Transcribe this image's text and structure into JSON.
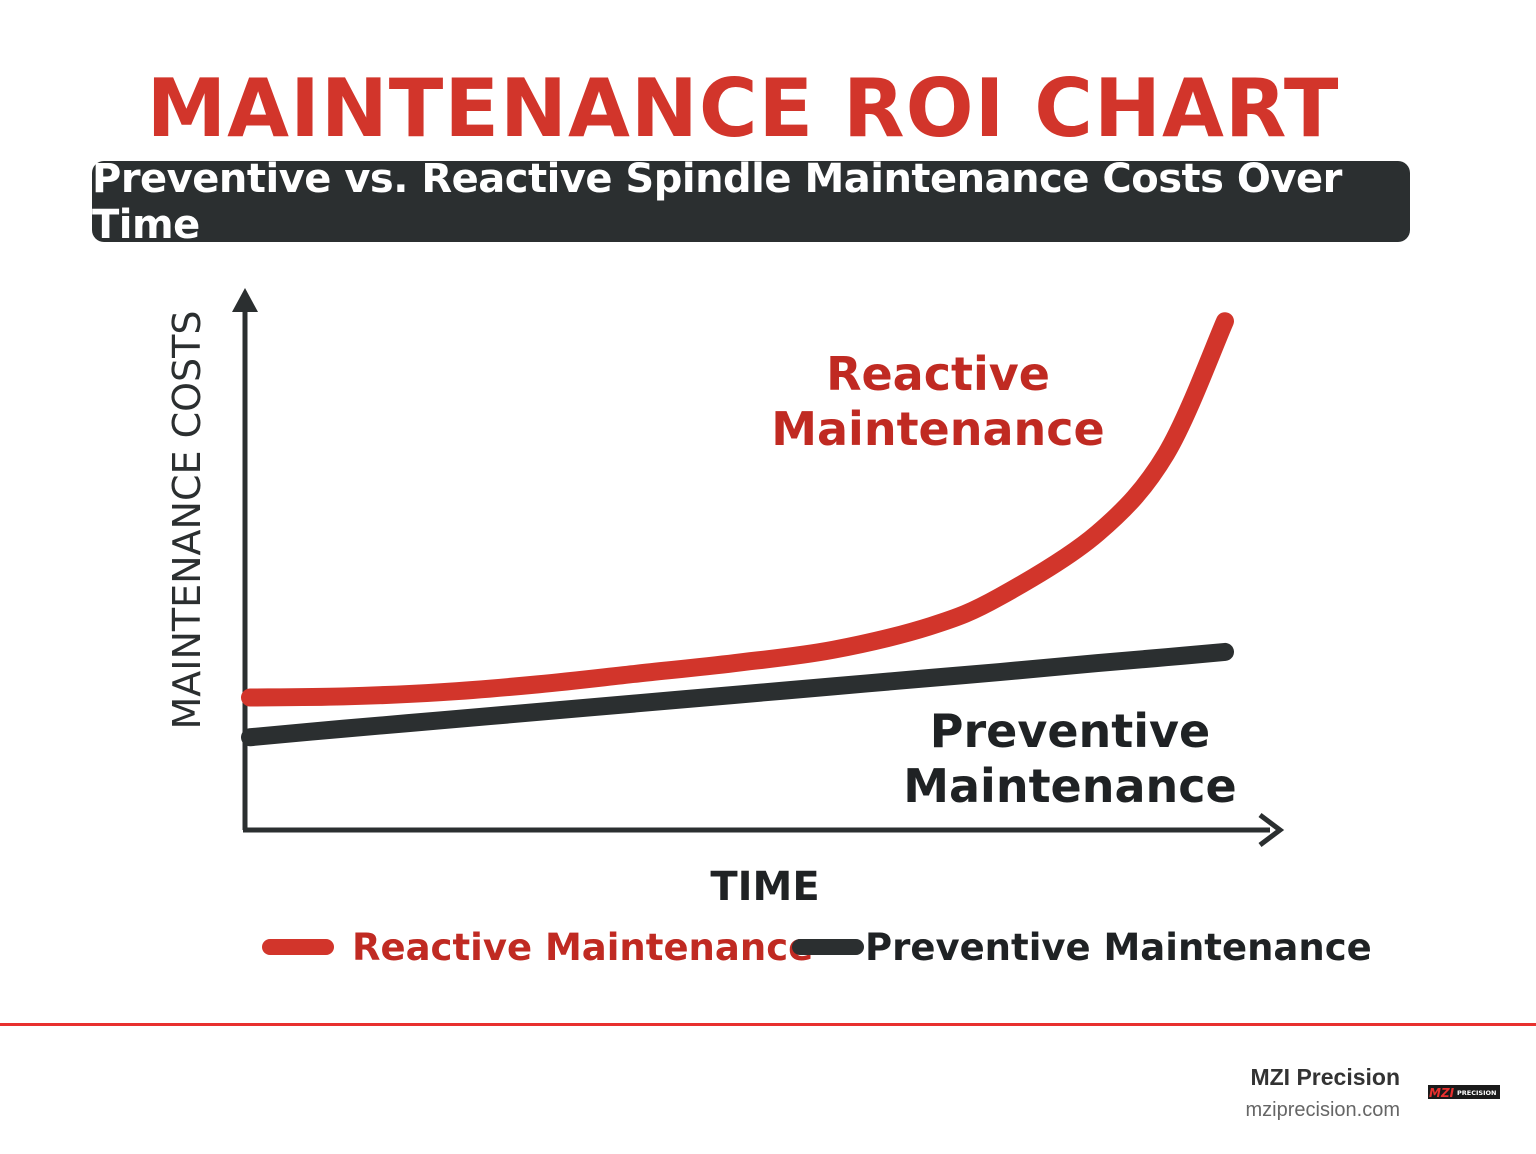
{
  "title": "MAINTENANCE ROI CHART",
  "subtitle": "Preventive vs. Reactive Spindle Maintenance Costs Over Time",
  "chart_data": {
    "type": "line",
    "title": "MAINTENANCE ROI CHART",
    "subtitle": "Preventive vs. Reactive Spindle Maintenance Costs Over Time",
    "xlabel": "TIME",
    "ylabel": "MAINTENANCE COSTS",
    "xlim": [
      0,
      10.5
    ],
    "ylim": [
      0,
      100
    ],
    "grid": false,
    "ticks": false,
    "legend": "bottom",
    "x": [
      0,
      1,
      2,
      3,
      4,
      5,
      6,
      7,
      7.7,
      8.7,
      9.4,
      10
    ],
    "series": [
      {
        "name": "Reactive Maintenance",
        "color": "#d2352b",
        "label": [
          "Reactive",
          "Maintenance"
        ],
        "values": [
          25,
          25.2,
          26,
          27.5,
          29.5,
          31.5,
          34,
          38.5,
          44,
          56,
          71,
          96
        ]
      },
      {
        "name": "Preventive Maintenance",
        "color": "#2b2f30",
        "label": [
          "Preventive",
          "Maintenance"
        ],
        "values": [
          17.5,
          19.1,
          20.7,
          22.3,
          23.9,
          25.5,
          27.1,
          28.7,
          29.8,
          31.5,
          32.6,
          33.6
        ]
      }
    ]
  },
  "footer": {
    "brand": "MZI Precision",
    "website": "mziprecision.com",
    "logo_text": "MZI PRECISION",
    "accent": "#e8302e"
  }
}
